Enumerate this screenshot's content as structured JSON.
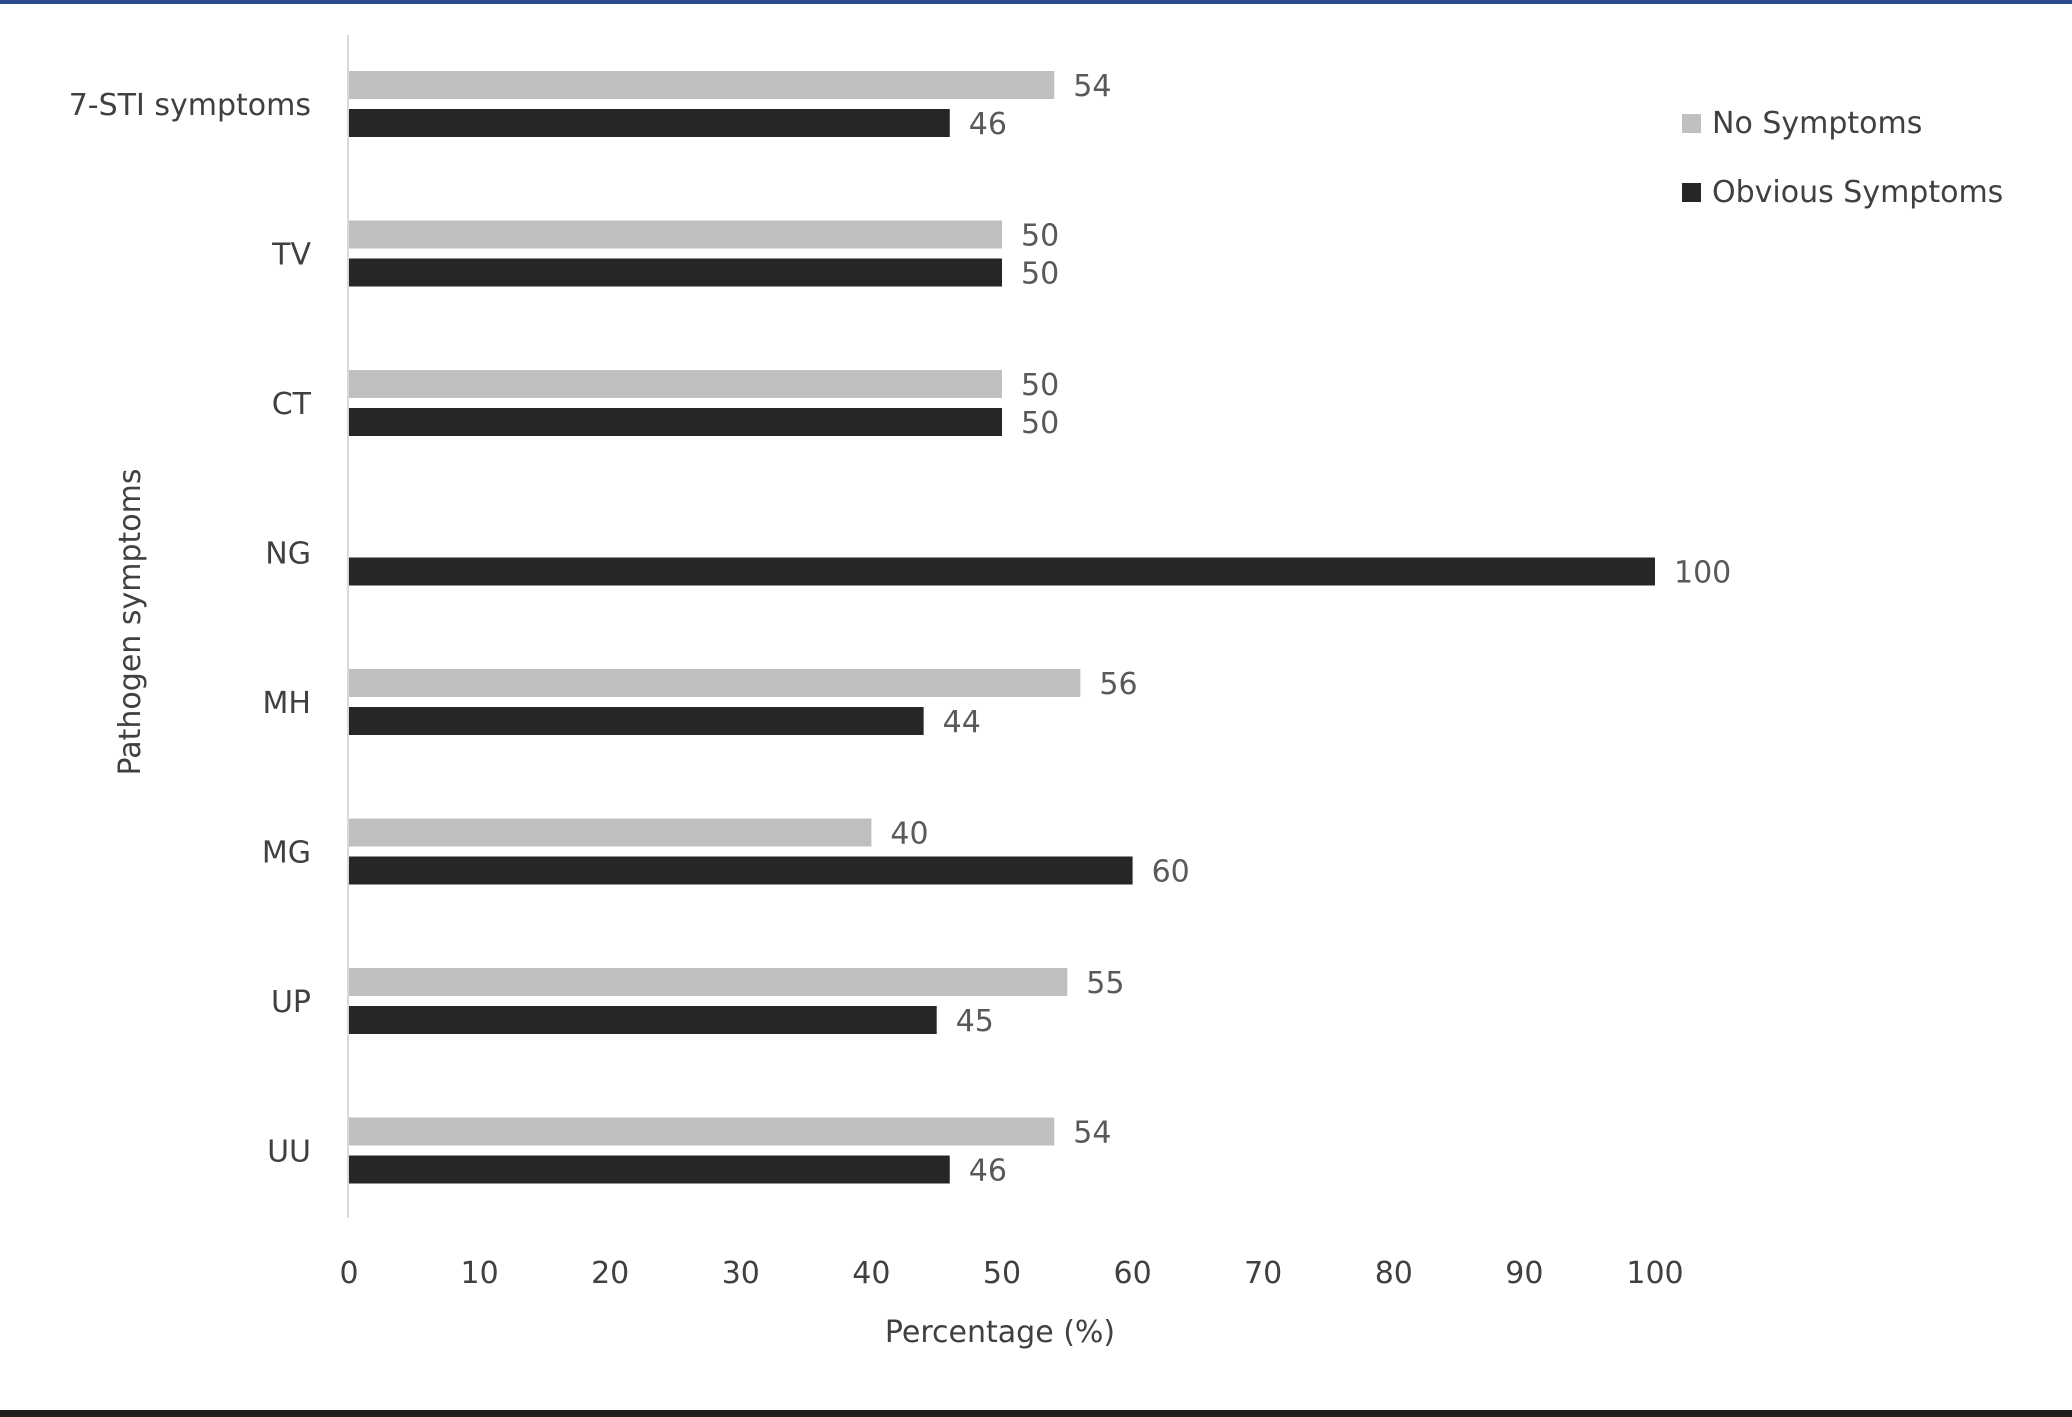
{
  "chart_data": {
    "type": "bar",
    "orientation": "horizontal",
    "categories": [
      "7-STI symptoms",
      "TV",
      "CT",
      "NG",
      "MH",
      "MG",
      "UP",
      "UU"
    ],
    "series": [
      {
        "name": "No Symptoms",
        "values": [
          54,
          50,
          50,
          null,
          56,
          40,
          55,
          54
        ],
        "color": "#bfbfbf"
      },
      {
        "name": "Obvious Symptoms",
        "values": [
          46,
          50,
          50,
          100,
          44,
          60,
          45,
          46
        ],
        "color": "#262626"
      }
    ],
    "xlabel": "Percentage (%)",
    "ylabel": "Pathogen symptoms",
    "xlim": [
      0,
      100
    ],
    "xticks": [
      0,
      10,
      20,
      30,
      40,
      50,
      60,
      70,
      80,
      90,
      100
    ],
    "legend_position": "top-right",
    "grid": false
  }
}
